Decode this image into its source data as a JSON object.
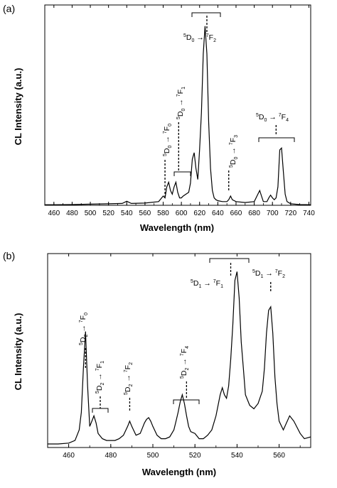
{
  "chart_data": [
    {
      "panel": "(a)",
      "type": "line",
      "xlabel": "Wavelength (nm)",
      "ylabel": "CL Intensity (a.u.)",
      "xlim": [
        450,
        742
      ],
      "ylim": [
        0,
        1.05
      ],
      "xticks": [
        460,
        480,
        500,
        520,
        540,
        560,
        580,
        600,
        620,
        640,
        660,
        680,
        700,
        720,
        740
      ],
      "series": [
        {
          "x": [
            450,
            460,
            480,
            500,
            520,
            535,
            540,
            545,
            560,
            575,
            580,
            582,
            584,
            586,
            588,
            590,
            592,
            594,
            596,
            598,
            600,
            602,
            605,
            608,
            610,
            612,
            614,
            616,
            618,
            620,
            622,
            624,
            626,
            628,
            630,
            632,
            634,
            636,
            638,
            640,
            645,
            650,
            652,
            654,
            656,
            660,
            670,
            680,
            684,
            686,
            688,
            690,
            694,
            696,
            698,
            700,
            702,
            704,
            706,
            708,
            710,
            712,
            714,
            716,
            720,
            730,
            742
          ],
          "values": [
            0.003,
            0.003,
            0.004,
            0.006,
            0.008,
            0.01,
            0.022,
            0.01,
            0.012,
            0.02,
            0.05,
            0.04,
            0.1,
            0.125,
            0.08,
            0.06,
            0.1,
            0.125,
            0.07,
            0.04,
            0.04,
            0.05,
            0.06,
            0.07,
            0.12,
            0.25,
            0.285,
            0.2,
            0.14,
            0.3,
            0.5,
            0.82,
            0.97,
            0.82,
            0.45,
            0.2,
            0.08,
            0.04,
            0.03,
            0.025,
            0.02,
            0.02,
            0.03,
            0.05,
            0.03,
            0.02,
            0.015,
            0.02,
            0.06,
            0.08,
            0.05,
            0.02,
            0.02,
            0.04,
            0.055,
            0.04,
            0.03,
            0.04,
            0.1,
            0.3,
            0.31,
            0.18,
            0.06,
            0.02,
            0.008,
            0.004,
            0.003
          ]
        }
      ],
      "annotations": [
        {
          "label": "5D0 → 7F0",
          "x": 582
        },
        {
          "label": "5D0 → 7F1",
          "x": 597
        },
        {
          "label": "5D0 → 7F2",
          "x": 628
        },
        {
          "label": "5D0 → 7F3",
          "x": 652
        },
        {
          "label": "5D0 → 7F4",
          "x": 704
        }
      ]
    },
    {
      "panel": "(b)",
      "type": "line",
      "xlabel": "Wavelength (nm)",
      "ylabel": "CL Intensity (a.u.)",
      "xlim": [
        450,
        575
      ],
      "ylim": [
        0,
        1.05
      ],
      "xticks": [
        460,
        480,
        500,
        520,
        540,
        560
      ],
      "series": [
        {
          "x": [
            450,
            455,
            460,
            463,
            465,
            466,
            467,
            468,
            469,
            470,
            471,
            472,
            473,
            474,
            476,
            478,
            480,
            482,
            484,
            486,
            488,
            489,
            490,
            492,
            494,
            495,
            496,
            497,
            498,
            499,
            500,
            502,
            504,
            506,
            508,
            510,
            511,
            512,
            513,
            514,
            515,
            516,
            517,
            518,
            520,
            522,
            524,
            526,
            528,
            530,
            532,
            533,
            534,
            535,
            536,
            537,
            538,
            539,
            540,
            541,
            542,
            543,
            544,
            546,
            548,
            550,
            552,
            553,
            554,
            555,
            556,
            557,
            558,
            559,
            560,
            562,
            565,
            567,
            570,
            572,
            575
          ],
          "values": [
            0.02,
            0.02,
            0.025,
            0.04,
            0.1,
            0.2,
            0.45,
            0.66,
            0.35,
            0.12,
            0.15,
            0.18,
            0.14,
            0.08,
            0.05,
            0.04,
            0.04,
            0.04,
            0.05,
            0.07,
            0.12,
            0.15,
            0.12,
            0.07,
            0.08,
            0.11,
            0.14,
            0.16,
            0.17,
            0.15,
            0.12,
            0.07,
            0.05,
            0.05,
            0.06,
            0.1,
            0.15,
            0.2,
            0.26,
            0.3,
            0.25,
            0.18,
            0.12,
            0.09,
            0.08,
            0.05,
            0.05,
            0.07,
            0.1,
            0.18,
            0.3,
            0.34,
            0.3,
            0.28,
            0.35,
            0.5,
            0.7,
            0.95,
            1.0,
            0.85,
            0.6,
            0.45,
            0.3,
            0.24,
            0.22,
            0.25,
            0.32,
            0.45,
            0.65,
            0.78,
            0.8,
            0.65,
            0.4,
            0.25,
            0.15,
            0.1,
            0.18,
            0.15,
            0.08,
            0.05,
            0.06
          ]
        }
      ],
      "annotations": [
        {
          "label": "5D2 → 7F0",
          "x": 468
        },
        {
          "label": "5D2 → 7F1",
          "x": 475
        },
        {
          "label": "5D2 → 7F2",
          "x": 489
        },
        {
          "label": "5D2 → 7F4",
          "x": 516
        },
        {
          "label": "5D1 → 7F1",
          "x": 537
        },
        {
          "label": "5D1 → 7F2",
          "x": 556
        }
      ]
    }
  ],
  "labels": {
    "panel_a": "(a)",
    "panel_b": "(b)",
    "xlabel": "Wavelength (nm)",
    "ylabel": "CL Intensity (a.u.)",
    "arrow": "→"
  }
}
